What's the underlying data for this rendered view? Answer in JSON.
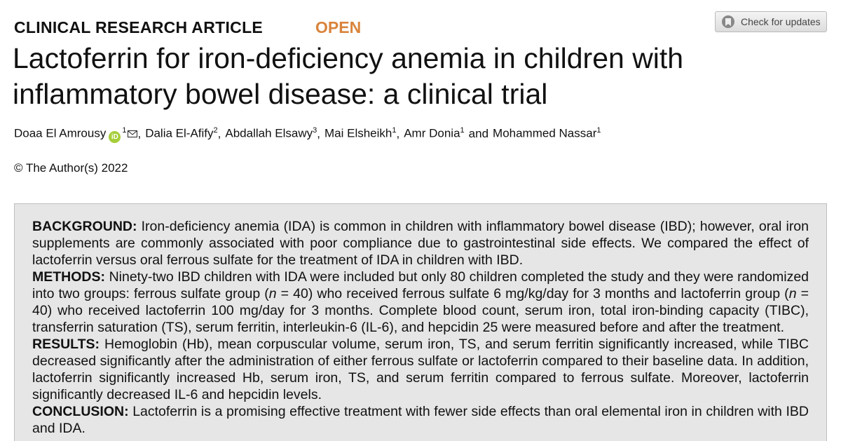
{
  "header": {
    "label": "CLINICAL RESEARCH ARTICLE",
    "open": "OPEN",
    "check_updates": "Check for updates"
  },
  "title": "Lactoferrin for iron-deficiency anemia in children with inflammatory bowel disease: a clinical trial",
  "authors": [
    {
      "name": "Doaa El Amrousy",
      "sup": "1",
      "orcid": true,
      "email": true
    },
    {
      "name": "Dalia El-Afify",
      "sup": "2"
    },
    {
      "name": "Abdallah Elsawy",
      "sup": "3"
    },
    {
      "name": "Mai Elsheikh",
      "sup": "1"
    },
    {
      "name": "Amr Donia",
      "sup": "1"
    },
    {
      "name": "Mohammed Nassar",
      "sup": "1"
    }
  ],
  "author_separators": [
    ",",
    ",",
    ",",
    ",",
    "and"
  ],
  "copyright": "© The Author(s) 2022",
  "abstract": {
    "sections": [
      {
        "heading": "BACKGROUND:",
        "text": "Iron-deficiency anemia (IDA) is common in children with inflammatory bowel disease (IBD); however, oral iron supplements are commonly associated with poor compliance due to gastrointestinal side effects. We compared the effect of lactoferrin versus oral ferrous sulfate for the treatment of IDA in children with IBD."
      },
      {
        "heading": "METHODS:",
        "parts": [
          {
            "text": "Ninety-two IBD children with IDA were included but only 80 children completed the study and they were randomized into two groups: ferrous sulfate group ("
          },
          {
            "text": "n",
            "italic": true
          },
          {
            "text": " = 40) who received ferrous sulfate 6 mg/kg/day for 3 months and lactoferrin group ("
          },
          {
            "text": "n",
            "italic": true
          },
          {
            "text": " = 40) who received lactoferrin 100 mg/day for 3 months. Complete blood count, serum iron, total iron-binding capacity (TIBC), transferrin saturation (TS), serum ferritin, interleukin-6 (IL-6), and hepcidin 25 were measured before and after the treatment."
          }
        ]
      },
      {
        "heading": "RESULTS:",
        "text": "Hemoglobin (Hb), mean corpuscular volume, serum iron, TS, and serum ferritin significantly increased, while TIBC decreased significantly after the administration of either ferrous sulfate or lactoferrin compared to their baseline data. In addition, lactoferrin significantly increased Hb, serum iron, TS, and serum ferritin compared to ferrous sulfate. Moreover, lactoferrin significantly decreased IL-6 and hepcidin levels."
      },
      {
        "heading": "CONCLUSION:",
        "text": "Lactoferrin is a promising effective treatment with fewer side effects than oral elemental iron in children with IBD and IDA."
      }
    ]
  }
}
